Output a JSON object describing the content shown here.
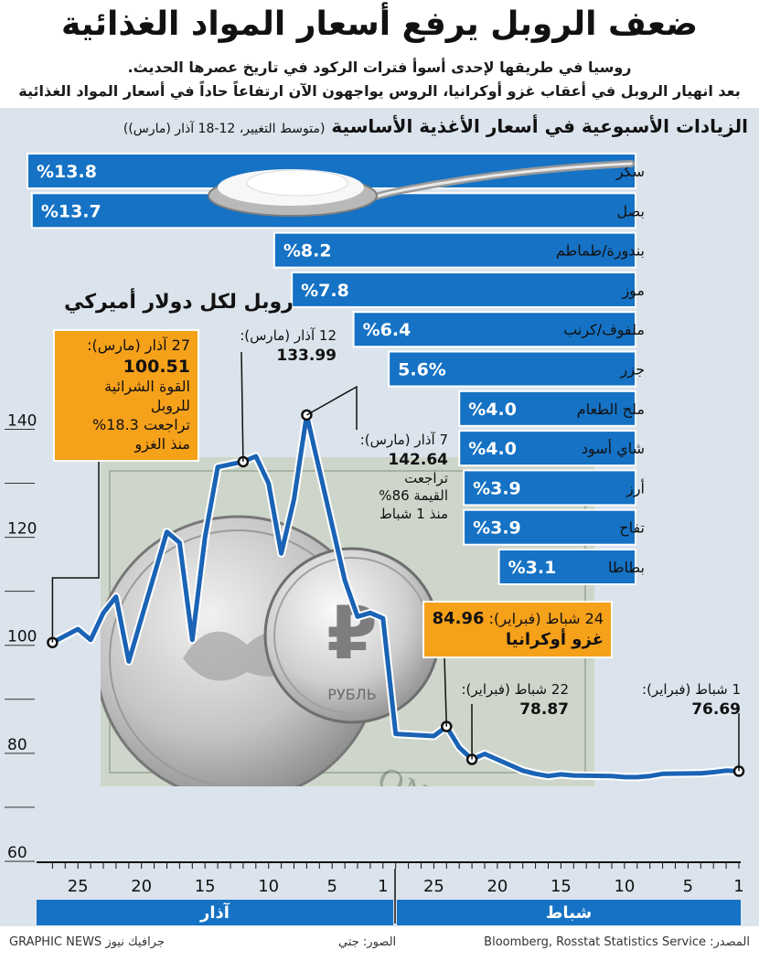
{
  "header": {
    "title": "ضعف الروبل يرفع أسعار المواد الغذائية",
    "subtitle_line1": "روسيا في طريقها لإحدى أسوأ فترات الركود في تاريخ عصرها الحديث.",
    "subtitle_line2": "بعد انهيار الروبل في أعقاب غزو أوكرانيا، الروس يواجهون الآن ارتفاعاً حاداً في أسعار المواد الغذائية"
  },
  "bars_panel": {
    "title": "الزيادات الأسبوعية في أسعار الأغذية الأساسية",
    "note": "(متوسط التغيير، 12-18 آذار (مارس))"
  },
  "ruble_panel": {
    "title": "روبل لكل دولار أميركي"
  },
  "callouts": {
    "mar27": {
      "date": "27 آذار (مارس):",
      "value": "100.51",
      "text1": "القوة الشرائية للروبل",
      "text2": "تراجعت 18.3%",
      "text3": "منذ الغزو"
    },
    "mar12": {
      "date": "12 آذار (مارس):",
      "value": "133.99"
    },
    "mar7": {
      "date": "7 آذار (مارس):",
      "value": "142.64",
      "text1": "تراجعت",
      "text2": "القيمة 86%",
      "text3": "منذ 1 شباط"
    },
    "feb24": {
      "date": "24 شباط (فبراير):",
      "value": "84.96",
      "text1": "غزو أوكرانيا"
    },
    "feb22": {
      "date": "22 شباط (فبراير):",
      "value": "78.87"
    },
    "feb1": {
      "date": "1 شباط (فبراير):",
      "value": "76.69"
    }
  },
  "footer": {
    "source": "المصدر: Bloomberg, Rosstat Statistics Service",
    "photos": "الصور: جتي",
    "credit": "GRAPHIC NEWS جرافيك نيوز"
  },
  "colors": {
    "bar_blue": "#1572c4",
    "line_blue": "#1a63b5",
    "callout_orange": "#f6a11a",
    "panel_bg": "#dbe4ec"
  },
  "chart_data": [
    {
      "type": "bar",
      "orientation": "horizontal",
      "title": "الزيادات الأسبوعية في أسعار الأغذية الأساسية",
      "subtitle": "(متوسط التغيير، 12-18 آذار (مارس))",
      "categories": [
        "سكر",
        "بصل",
        "بندورة/طماطم",
        "موز",
        "ملفوف/كرنب",
        "جزر",
        "ملح الطعام",
        "شاي أسود",
        "أرز",
        "تفاح",
        "بطاطا"
      ],
      "values": [
        13.8,
        13.7,
        8.2,
        7.8,
        6.4,
        5.6,
        4.0,
        4.0,
        3.9,
        3.9,
        3.1
      ],
      "value_labels": [
        "%13.8",
        "%13.7",
        "%8.2",
        "%7.8",
        "%6.4",
        "5.6%",
        "%4.0",
        "%4.0",
        "%3.9",
        "%3.9",
        "%3.1"
      ],
      "unit": "%"
    },
    {
      "type": "line",
      "title": "روبل لكل دولار أميركي",
      "x_direction": "right-to-left",
      "months": [
        {
          "name": "شباط",
          "days": 28
        },
        {
          "name": "آذار",
          "days": 27
        }
      ],
      "x_tick_labels": {
        "feb": [
          "1",
          "5",
          "10",
          "15",
          "20",
          "25"
        ],
        "mar": [
          "1",
          "5",
          "10",
          "15",
          "20",
          "25"
        ]
      },
      "y_ticks": [
        "60",
        "80",
        "100",
        "120",
        "140"
      ],
      "ylim": [
        60,
        146
      ],
      "points": [
        {
          "date": "2022-02-01",
          "y": 76.69
        },
        {
          "date": "2022-02-02",
          "y": 76.8
        },
        {
          "date": "2022-02-03",
          "y": 76.5
        },
        {
          "date": "2022-02-04",
          "y": 76.3
        },
        {
          "date": "2022-02-07",
          "y": 76.2
        },
        {
          "date": "2022-02-08",
          "y": 75.8
        },
        {
          "date": "2022-02-09",
          "y": 75.6
        },
        {
          "date": "2022-02-10",
          "y": 75.6
        },
        {
          "date": "2022-02-11",
          "y": 75.8
        },
        {
          "date": "2022-02-14",
          "y": 75.9
        },
        {
          "date": "2022-02-15",
          "y": 76.1
        },
        {
          "date": "2022-02-16",
          "y": 75.8
        },
        {
          "date": "2022-02-17",
          "y": 76.2
        },
        {
          "date": "2022-02-18",
          "y": 76.8
        },
        {
          "date": "2022-02-21",
          "y": 79.9
        },
        {
          "date": "2022-02-22",
          "y": 78.87
        },
        {
          "date": "2022-02-23",
          "y": 81.1
        },
        {
          "date": "2022-02-24",
          "y": 84.96
        },
        {
          "date": "2022-02-25",
          "y": 83.2
        },
        {
          "date": "2022-02-28",
          "y": 83.6
        },
        {
          "date": "2022-03-01",
          "y": 105.0
        },
        {
          "date": "2022-03-02",
          "y": 106.0
        },
        {
          "date": "2022-03-03",
          "y": 105.3
        },
        {
          "date": "2022-03-04",
          "y": 112.0
        },
        {
          "date": "2022-03-07",
          "y": 142.64
        },
        {
          "date": "2022-03-08",
          "y": 127.0
        },
        {
          "date": "2022-03-09",
          "y": 117.0
        },
        {
          "date": "2022-03-10",
          "y": 130.0
        },
        {
          "date": "2022-03-11",
          "y": 135.0
        },
        {
          "date": "2022-03-12",
          "y": 133.99
        },
        {
          "date": "2022-03-14",
          "y": 133.0
        },
        {
          "date": "2022-03-15",
          "y": 120.0
        },
        {
          "date": "2022-03-16",
          "y": 101.0
        },
        {
          "date": "2022-03-17",
          "y": 119.0
        },
        {
          "date": "2022-03-18",
          "y": 121.0
        },
        {
          "date": "2022-03-21",
          "y": 97.0
        },
        {
          "date": "2022-03-22",
          "y": 109.0
        },
        {
          "date": "2022-03-23",
          "y": 106.0
        },
        {
          "date": "2022-03-24",
          "y": 101.0
        },
        {
          "date": "2022-03-25",
          "y": 103.0
        },
        {
          "date": "2022-03-27",
          "y": 100.51
        }
      ],
      "annotations": [
        {
          "date": "2022-03-27",
          "y": 100.51
        },
        {
          "date": "2022-03-12",
          "y": 133.99
        },
        {
          "date": "2022-03-07",
          "y": 142.64
        },
        {
          "date": "2022-02-24",
          "y": 84.96
        },
        {
          "date": "2022-02-22",
          "y": 78.87
        },
        {
          "date": "2022-02-01",
          "y": 76.69
        }
      ]
    }
  ]
}
